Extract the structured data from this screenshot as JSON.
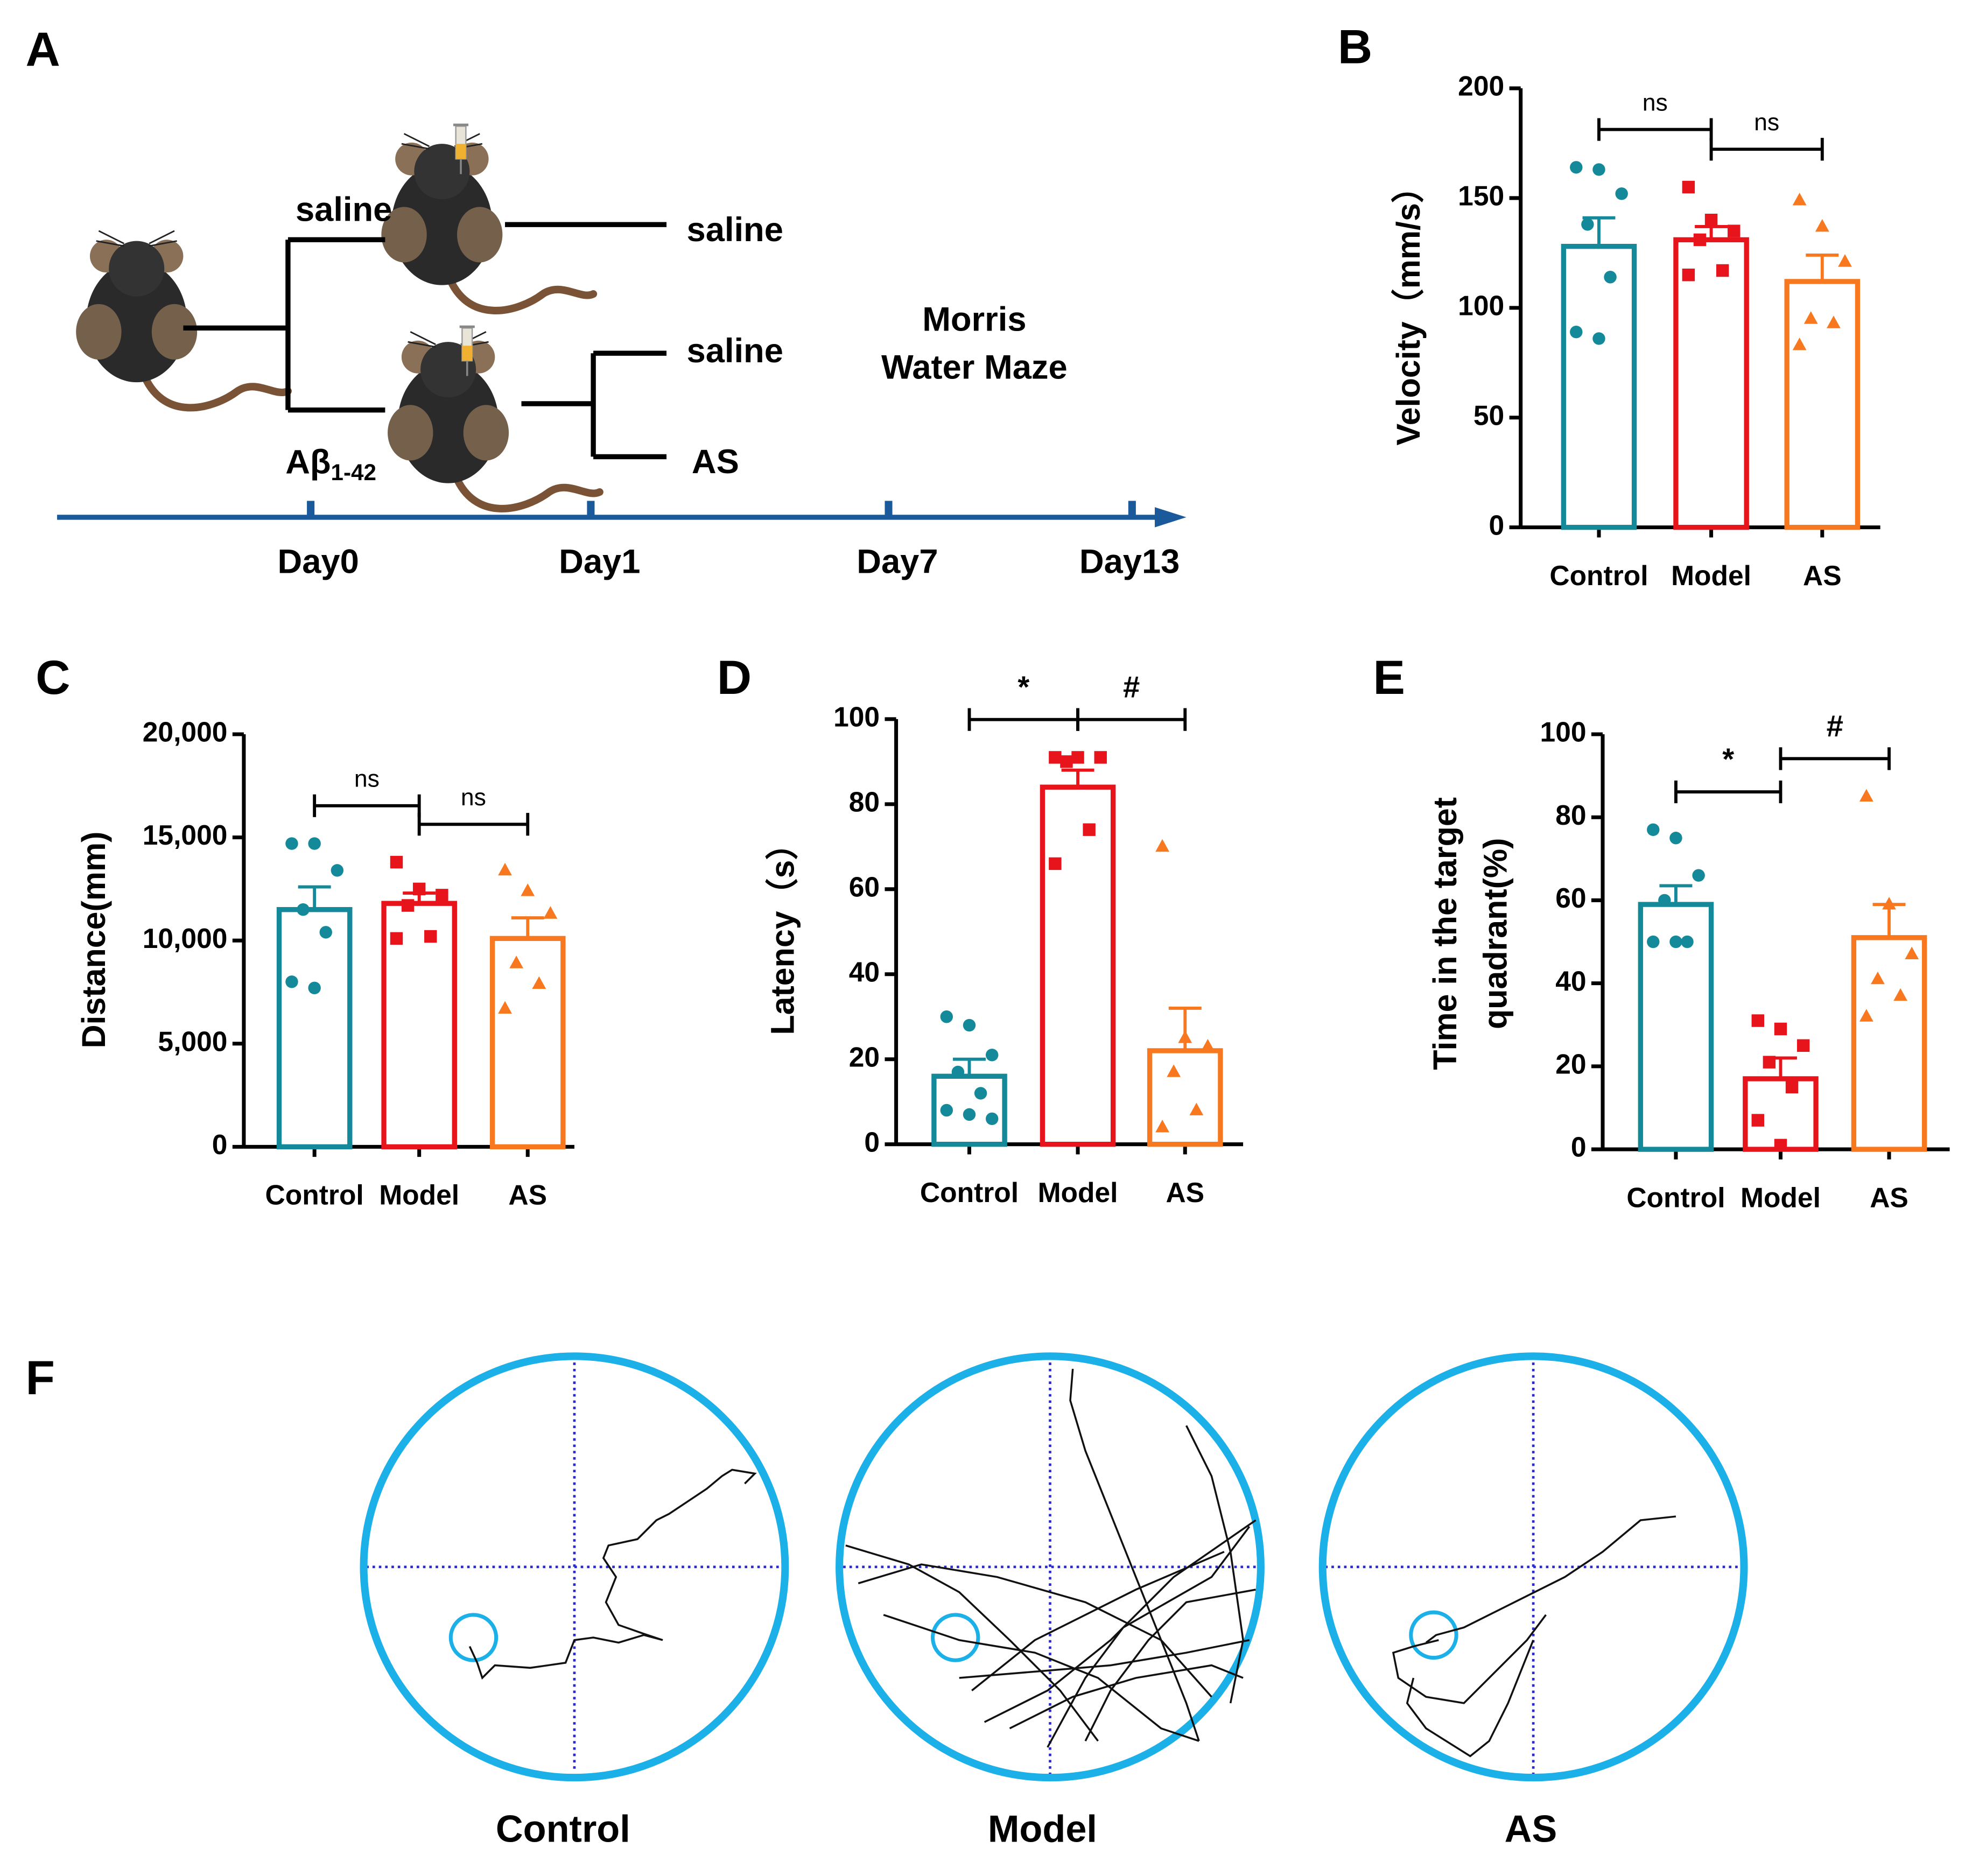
{
  "panel_a": {
    "letter": "A",
    "branch_labels": [
      "saline",
      "saline",
      "saline",
      "AS"
    ],
    "injection": "Aβ",
    "injection_sub": "1-42",
    "test": [
      "Morris",
      "Water Maze"
    ],
    "days": [
      "Day0",
      "Day1",
      "Day7",
      "Day13"
    ]
  },
  "chart_data": [
    {
      "letter": "B",
      "type": "bar",
      "ylabel": "Velocity（mm/s）",
      "categories": [
        "Control",
        "Model",
        "AS"
      ],
      "values": [
        128,
        131,
        112
      ],
      "errors": [
        13,
        6,
        12
      ],
      "points": [
        [
          164,
          163,
          152,
          138,
          114,
          89,
          86
        ],
        [
          155,
          140,
          135,
          131,
          117,
          115
        ],
        [
          149,
          137,
          121,
          95,
          93,
          83
        ]
      ],
      "colors": [
        "#13899a",
        "#e8141b",
        "#f7781f"
      ],
      "markers": [
        "circle",
        "square",
        "triangle"
      ],
      "ylim": [
        0,
        200
      ],
      "yticks": [
        0,
        50,
        100,
        150,
        200
      ],
      "annotations": [
        {
          "groups": [
            0,
            1
          ],
          "label": "ns"
        },
        {
          "groups": [
            1,
            2
          ],
          "label": "ns"
        }
      ]
    },
    {
      "letter": "C",
      "type": "bar",
      "ylabel": "Distance(mm)",
      "categories": [
        "Control",
        "Model",
        "AS"
      ],
      "values": [
        11500,
        11800,
        10100
      ],
      "errors": [
        1100,
        500,
        1000
      ],
      "points": [
        [
          14700,
          14700,
          13400,
          11500,
          10400,
          8000,
          7700
        ],
        [
          13800,
          12500,
          12200,
          11700,
          10200,
          10100
        ],
        [
          13400,
          12400,
          11300,
          8900,
          7900,
          6700
        ]
      ],
      "colors": [
        "#13899a",
        "#e8141b",
        "#f7781f"
      ],
      "markers": [
        "circle",
        "square",
        "triangle"
      ],
      "ylim": [
        0,
        20000
      ],
      "yticks": [
        0,
        {
          "value": 5000,
          "label": "5,000"
        },
        {
          "value": 10000,
          "label": "10,000"
        },
        {
          "value": 15000,
          "label": "15,000"
        },
        {
          "value": 20000,
          "label": "20,000"
        }
      ],
      "annotations": [
        {
          "groups": [
            0,
            1
          ],
          "label": "ns"
        },
        {
          "groups": [
            1,
            2
          ],
          "label": "ns"
        }
      ]
    },
    {
      "letter": "D",
      "type": "bar",
      "ylabel": "Latency（s）",
      "categories": [
        "Control",
        "Model",
        "AS"
      ],
      "values": [
        16,
        84,
        22
      ],
      "errors": [
        4,
        4,
        10
      ],
      "points": [
        [
          30,
          28,
          21,
          17,
          12,
          8,
          7,
          6
        ],
        [
          91,
          91,
          91,
          90,
          74,
          66
        ],
        [
          70,
          25,
          23,
          17,
          8,
          4
        ]
      ],
      "colors": [
        "#13899a",
        "#e8141b",
        "#f7781f"
      ],
      "markers": [
        "circle",
        "square",
        "triangle"
      ],
      "ylim": [
        0,
        100
      ],
      "yticks": [
        0,
        20,
        40,
        60,
        80,
        100
      ],
      "annotations": [
        {
          "groups": [
            0,
            1
          ],
          "label": "*"
        },
        {
          "groups": [
            1,
            2
          ],
          "label": "#"
        }
      ]
    },
    {
      "letter": "E",
      "type": "bar",
      "ylabel": [
        "Time in the target",
        "quadrant(%)"
      ],
      "categories": [
        "Control",
        "Model",
        "AS"
      ],
      "values": [
        59,
        17,
        51
      ],
      "errors": [
        4.5,
        5,
        8
      ],
      "points": [
        [
          77,
          75,
          66,
          60,
          50,
          50,
          50
        ],
        [
          31,
          29,
          25,
          21,
          15,
          7,
          1
        ],
        [
          85,
          59,
          47,
          41,
          37,
          32
        ]
      ],
      "colors": [
        "#13899a",
        "#e8141b",
        "#f7781f"
      ],
      "markers": [
        "circle",
        "square",
        "triangle"
      ],
      "ylim": [
        0,
        100
      ],
      "yticks": [
        0,
        20,
        40,
        60,
        80,
        100
      ],
      "annotations": [
        {
          "groups": [
            0,
            1
          ],
          "label": "*"
        },
        {
          "groups": [
            1,
            2
          ],
          "label": "#"
        }
      ]
    }
  ],
  "panel_f": {
    "letter": "F",
    "groups": [
      "Control",
      "Model",
      "AS"
    ]
  }
}
